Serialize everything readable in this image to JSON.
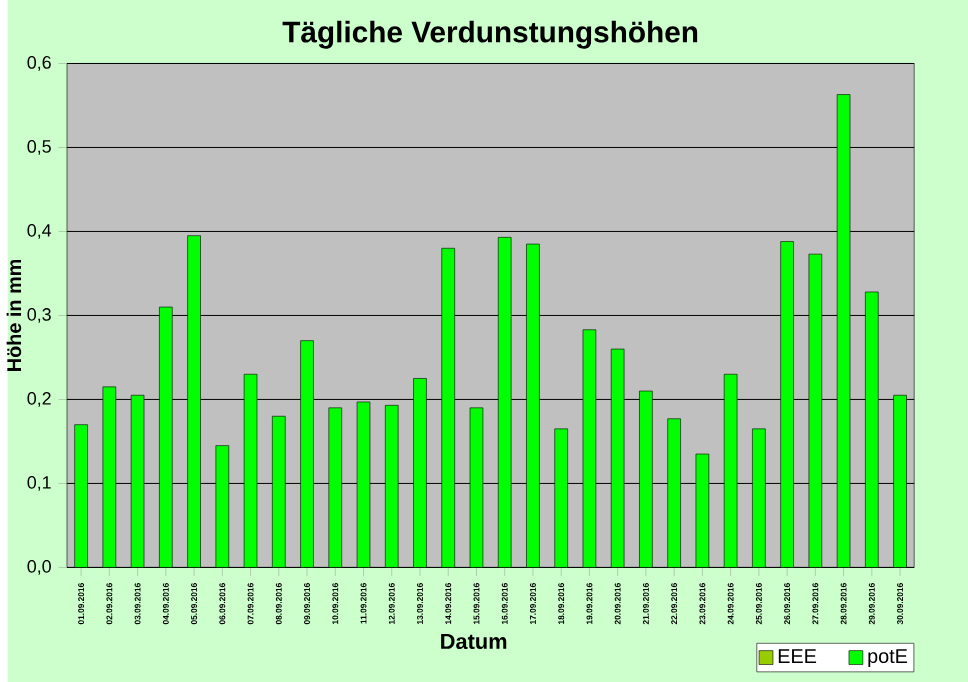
{
  "chart_data": {
    "type": "bar",
    "title": "Tägliche Verdunstungshöhen",
    "xlabel": "Datum",
    "ylabel": "Höhe in mm",
    "categories": [
      "01.09.2016",
      "02.09.2016",
      "03.09.2016",
      "04.09.2016",
      "05.09.2016",
      "06.09.2016",
      "07.09.2016",
      "08.09.2016",
      "09.09.2016",
      "10.09.2016",
      "11.09.2016",
      "12.09.2016",
      "13.09.2016",
      "14.09.2016",
      "15.09.2016",
      "16.09.2016",
      "17.09.2016",
      "18.09.2016",
      "19.09.2016",
      "20.09.2016",
      "21.09.2016",
      "22.09.2016",
      "23.09.2016",
      "24.09.2016",
      "25.09.2016",
      "26.09.2016",
      "27.09.2016",
      "28.09.2016",
      "29.09.2016",
      "30.09.2016"
    ],
    "series": [
      {
        "name": "EEE",
        "color": "#99cc00",
        "values": [
          null,
          null,
          null,
          null,
          null,
          null,
          null,
          null,
          null,
          null,
          null,
          null,
          null,
          null,
          null,
          null,
          null,
          null,
          null,
          null,
          null,
          null,
          null,
          null,
          null,
          null,
          null,
          null,
          null,
          null
        ]
      },
      {
        "name": "potE",
        "color": "#00ff00",
        "values": [
          0.17,
          0.215,
          0.205,
          0.31,
          0.395,
          0.145,
          0.23,
          0.18,
          0.27,
          0.19,
          0.197,
          0.193,
          0.225,
          0.38,
          0.19,
          0.393,
          0.385,
          0.165,
          0.283,
          0.26,
          0.21,
          0.177,
          0.135,
          0.23,
          0.165,
          0.388,
          0.373,
          0.563,
          0.328,
          0.205
        ]
      }
    ],
    "ylim": [
      0,
      0.6
    ],
    "yticks": [
      {
        "value": 0,
        "label": "0,0"
      },
      {
        "value": 0.1,
        "label": "0,1"
      },
      {
        "value": 0.2,
        "label": "0,2"
      },
      {
        "value": 0.3,
        "label": "0,3"
      },
      {
        "value": 0.4,
        "label": "0,4"
      },
      {
        "value": 0.5,
        "label": "0,5"
      },
      {
        "value": 0.6,
        "label": "0,6"
      }
    ],
    "grid": "y",
    "legend": "bottom right"
  }
}
